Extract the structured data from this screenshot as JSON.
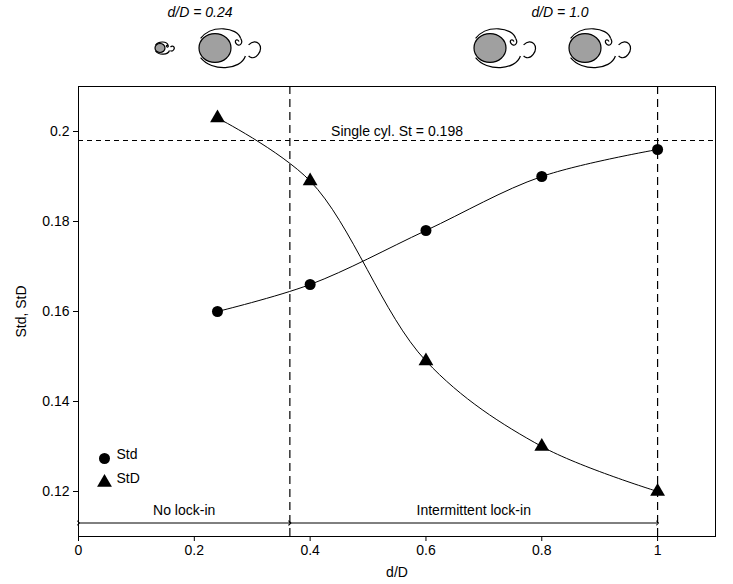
{
  "chart_data": {
    "type": "line",
    "x_label": "d/D",
    "y_label": "Std, StD",
    "xlim": [
      0,
      1.1
    ],
    "xticks": [
      0,
      0.2,
      0.4,
      0.6,
      0.8,
      1
    ],
    "ylim": [
      0.11,
      0.21
    ],
    "yticks": [
      0.12,
      0.14,
      0.16,
      0.18,
      0.2
    ],
    "x": [
      0.24,
      0.4,
      0.6,
      0.8,
      1.0
    ],
    "series": [
      {
        "name": "Std",
        "color": "#000000",
        "marker": "circle",
        "values": [
          0.16,
          0.166,
          0.178,
          0.19,
          0.196
        ]
      },
      {
        "name": "StD",
        "color": "#000000",
        "marker": "triangle",
        "values": [
          0.203,
          0.189,
          0.149,
          0.13,
          0.12
        ]
      }
    ],
    "legend": "bottom-left",
    "annotations": {
      "reference_line": {
        "label": "Single cyl. St = 0.198",
        "value": 0.198
      },
      "regions": [
        {
          "label": "No lock-in",
          "from": 0,
          "to": 0.365
        },
        {
          "label": "Intermittent lock-in",
          "from": 0.365,
          "to": 1
        }
      ],
      "sketch_labels": [
        "d/D = 0.24",
        "d/D = 1.0"
      ]
    }
  }
}
